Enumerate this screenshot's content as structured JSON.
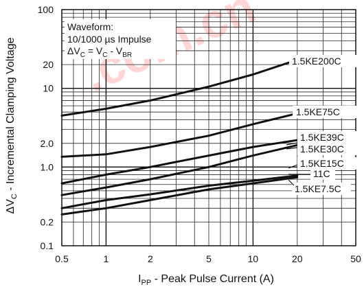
{
  "watermark": ".com.cn",
  "chart_data": {
    "type": "line",
    "x_scale": "log",
    "y_scale": "log",
    "xlim": [
      0.5,
      50
    ],
    "ylim": [
      0.1,
      100
    ],
    "x_ticks": [
      0.5,
      1,
      2,
      5,
      10,
      20,
      50
    ],
    "x_tick_labels": [
      "0.5",
      "1",
      "2",
      "5",
      "10",
      "20",
      "50"
    ],
    "y_ticks": [
      0.1,
      0.2,
      1,
      2,
      10,
      20,
      100
    ],
    "y_tick_labels": [
      "0.1",
      "0.2",
      "1.0",
      "2.0",
      "10",
      "20",
      "100"
    ],
    "xlabel": {
      "main": "I",
      "sub": "PP",
      "rest": " - Peak Pulse Current (A)"
    },
    "ylabel": {
      "pre": "ΔV",
      "sub": "C",
      "rest": " - Incremental Clamping Voltage"
    },
    "grid": true,
    "annotation": {
      "line1": "Waveform:",
      "line2": "10/1000 µs Impulse",
      "line3_parts": [
        "ΔV",
        "C",
        " = V",
        "C",
        " - V",
        "BR"
      ]
    },
    "series": [
      {
        "name": "1.5KE200C",
        "x": [
          0.5,
          1,
          2,
          5,
          10,
          20
        ],
        "y": [
          4.5,
          5.5,
          7,
          10.5,
          15,
          23
        ]
      },
      {
        "name": "1.5KE75C",
        "x": [
          0.5,
          1,
          2,
          5,
          10,
          20
        ],
        "y": [
          1.35,
          1.45,
          1.8,
          2.5,
          3.5,
          4.8
        ]
      },
      {
        "name": "1.5KE39C",
        "x": [
          0.5,
          1,
          2,
          5,
          10,
          20
        ],
        "y": [
          0.62,
          0.8,
          1.0,
          1.4,
          1.8,
          2.2
        ]
      },
      {
        "name": "1.5KE30C",
        "x": [
          0.5,
          1,
          2,
          5,
          10,
          20
        ],
        "y": [
          0.44,
          0.55,
          0.7,
          1.0,
          1.4,
          1.9
        ]
      },
      {
        "name": "1.5KE15C",
        "x": [
          0.5,
          1,
          2,
          5,
          10,
          20
        ],
        "y": [
          0.3,
          0.38,
          0.45,
          0.58,
          0.67,
          0.78
        ]
      },
      {
        "name": "11C",
        "x": [
          0.5,
          1,
          2,
          5,
          10,
          20
        ],
        "y": [
          0.25,
          0.3,
          0.38,
          0.52,
          0.62,
          0.74
        ]
      }
    ],
    "series_labels_extra": [
      "1.5KE7.5C"
    ]
  }
}
